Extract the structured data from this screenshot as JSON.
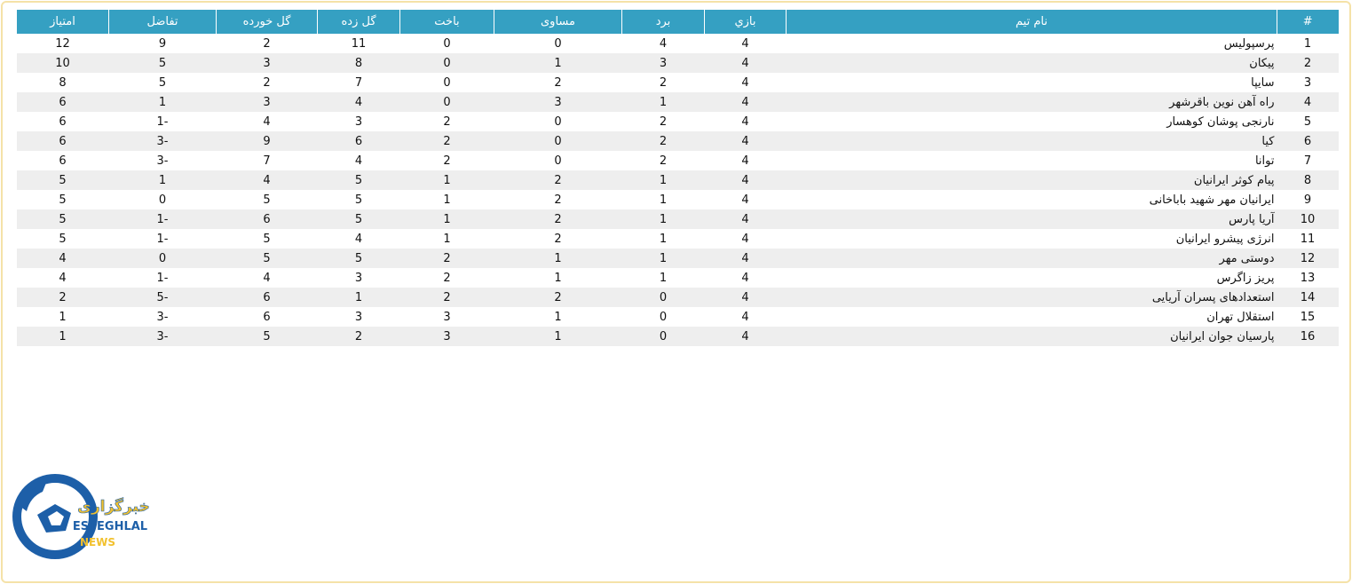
{
  "table": {
    "headers": [
      "#",
      "نام تیم",
      "بازي",
      "برد",
      "مساوی",
      "باخت",
      "گل زده",
      "گل خورده",
      "تفاضل",
      "امتیاز"
    ],
    "rows": [
      [
        1,
        "پرسپولیس",
        4,
        4,
        0,
        0,
        11,
        2,
        9,
        12
      ],
      [
        2,
        "پیکان",
        4,
        3,
        1,
        0,
        8,
        3,
        5,
        10
      ],
      [
        3,
        "سایپا",
        4,
        2,
        2,
        0,
        7,
        2,
        5,
        8
      ],
      [
        4,
        "راه آهن نوین باقرشهر",
        4,
        1,
        3,
        0,
        4,
        3,
        1,
        6
      ],
      [
        5,
        "نارنجی پوشان کوهسار",
        4,
        2,
        0,
        2,
        3,
        4,
        -1,
        6
      ],
      [
        6,
        "کیا",
        4,
        2,
        0,
        2,
        6,
        9,
        -3,
        6
      ],
      [
        7,
        "توانا",
        4,
        2,
        0,
        2,
        4,
        7,
        -3,
        6
      ],
      [
        8,
        "پیام کوثر ایرانیان",
        4,
        1,
        2,
        1,
        5,
        4,
        1,
        5
      ],
      [
        9,
        "ایرانیان مهر شهید باباخانی",
        4,
        1,
        2,
        1,
        5,
        5,
        0,
        5
      ],
      [
        10,
        "آریا پارس",
        4,
        1,
        2,
        1,
        5,
        6,
        -1,
        5
      ],
      [
        11,
        "انرژی پیشرو ایرانیان",
        4,
        1,
        2,
        1,
        4,
        5,
        -1,
        5
      ],
      [
        12,
        "دوستی مهر",
        4,
        1,
        1,
        2,
        5,
        5,
        0,
        4
      ],
      [
        13,
        "پریز زاگرس",
        4,
        1,
        1,
        2,
        3,
        4,
        -1,
        4
      ],
      [
        14,
        "استعدادهای پسران آریایی",
        4,
        0,
        2,
        2,
        1,
        6,
        -5,
        2
      ],
      [
        15,
        "استقلال تهران",
        4,
        0,
        1,
        3,
        3,
        6,
        -3,
        1
      ],
      [
        16,
        "پارسیان جوان ایرانیان",
        4,
        0,
        1,
        3,
        2,
        5,
        -3,
        1
      ]
    ]
  },
  "logo": {
    "persian": "خبرگزاری",
    "name": "ESTEGHLAL",
    "sub": "NEWS"
  }
}
